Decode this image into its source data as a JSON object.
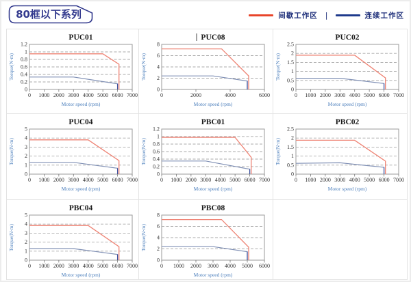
{
  "header": {
    "title": "80框以下系列",
    "separator": "|",
    "legend": [
      {
        "label": "间歇工作区",
        "color": "#e8442a"
      },
      {
        "label": "连续工作区",
        "color": "#1e3a8c"
      }
    ]
  },
  "colors": {
    "intermittent_line": "#ee8273",
    "continuous_line": "#8090b5",
    "continuous_drop": "#3a4f9e",
    "grid_line": "#a8a8a8",
    "plot_border": "#999999",
    "axis_label_blue": "#4f81bd",
    "accent_navy": "#333a8e",
    "cell_border": "#e3e3e3"
  },
  "chart_data": [
    {
      "type": "line",
      "title": "PUC01",
      "xlabel": "Motor speed (rpm)",
      "ylabel": "Torque(N·m)",
      "xlim": [
        0,
        7000
      ],
      "ylim": [
        0,
        1.2
      ],
      "xticks": [
        0,
        1000,
        2000,
        3000,
        4000,
        5000,
        6000,
        7000
      ],
      "yticks": [
        0,
        0.2,
        0.4,
        0.6,
        0.8,
        1,
        1.2
      ],
      "grid": "horizontal-dashed",
      "legend_position": "none",
      "series": [
        {
          "name": "间歇工作区",
          "color_key": "intermittent",
          "points": [
            [
              0,
              0.95
            ],
            [
              5000,
              0.95
            ],
            [
              6100,
              0.67
            ],
            [
              6100,
              0
            ]
          ]
        },
        {
          "name": "连续工作区",
          "color_key": "continuous",
          "points": [
            [
              0,
              0.33
            ],
            [
              3000,
              0.33
            ],
            [
              6000,
              0.15
            ],
            [
              6000,
              0
            ]
          ]
        }
      ]
    },
    {
      "type": "line",
      "title": "PUC08",
      "title_cursor": true,
      "xlabel": "Motor speed (rpm)",
      "ylabel": "Torque(N·m)",
      "xlim": [
        0,
        6000
      ],
      "ylim": [
        0,
        8
      ],
      "xticks": [
        0,
        2000,
        4000,
        6000
      ],
      "yticks": [
        0,
        2,
        4,
        6,
        8
      ],
      "grid": "horizontal-dashed",
      "legend_position": "none",
      "series": [
        {
          "name": "间歇工作区",
          "color_key": "intermittent",
          "points": [
            [
              0,
              7.2
            ],
            [
              3500,
              7.2
            ],
            [
              5080,
              2.4
            ],
            [
              5080,
              0
            ]
          ]
        },
        {
          "name": "连续工作区",
          "color_key": "continuous",
          "points": [
            [
              0,
              2.4
            ],
            [
              3000,
              2.4
            ],
            [
              5000,
              1.5
            ],
            [
              5000,
              0
            ]
          ]
        }
      ]
    },
    {
      "type": "line",
      "title": "PUC02",
      "xlabel": "Motor speed (rpm)",
      "ylabel": "Torque(N·m)",
      "xlim": [
        0,
        7000
      ],
      "ylim": [
        0,
        2.5
      ],
      "xticks": [
        0,
        1000,
        2000,
        3000,
        4000,
        5000,
        6000,
        7000
      ],
      "yticks": [
        0,
        0.5,
        1,
        1.5,
        2,
        2.5
      ],
      "grid": "horizontal-dashed",
      "legend_position": "none",
      "series": [
        {
          "name": "间歇工作区",
          "color_key": "intermittent",
          "points": [
            [
              0,
              1.9
            ],
            [
              4000,
              1.9
            ],
            [
              6100,
              0.64
            ],
            [
              6100,
              0
            ]
          ]
        },
        {
          "name": "连续工作区",
          "color_key": "continuous",
          "points": [
            [
              0,
              0.62
            ],
            [
              3000,
              0.62
            ],
            [
              6000,
              0.33
            ],
            [
              6000,
              0
            ]
          ]
        }
      ]
    },
    {
      "type": "line",
      "title": "PUC04",
      "xlabel": "Motor speed (rpm)",
      "ylabel": "Torque(N·m)",
      "xlim": [
        0,
        7000
      ],
      "ylim": [
        0,
        5
      ],
      "xticks": [
        0,
        1000,
        2000,
        3000,
        4000,
        5000,
        6000,
        7000
      ],
      "yticks": [
        0,
        1,
        2,
        3,
        4,
        5
      ],
      "grid": "horizontal-dashed",
      "legend_position": "none",
      "series": [
        {
          "name": "间歇工作区",
          "color_key": "intermittent",
          "points": [
            [
              0,
              3.8
            ],
            [
              4000,
              3.8
            ],
            [
              6100,
              1.5
            ],
            [
              6100,
              0
            ]
          ]
        },
        {
          "name": "连续工作区",
          "color_key": "continuous",
          "points": [
            [
              0,
              1.3
            ],
            [
              3000,
              1.3
            ],
            [
              6000,
              0.65
            ],
            [
              6000,
              0
            ]
          ]
        }
      ]
    },
    {
      "type": "line",
      "title": "PBC01",
      "xlabel": "Motor speed (rpm)",
      "ylabel": "Torque(N·m)",
      "xlim": [
        0,
        7000
      ],
      "ylim": [
        0,
        1.2
      ],
      "xticks": [
        0,
        1000,
        2000,
        3000,
        4000,
        5000,
        6000,
        7000
      ],
      "yticks": [
        0,
        0.2,
        0.4,
        0.6,
        0.8,
        1,
        1.2
      ],
      "grid": "horizontal-dashed",
      "legend_position": "none",
      "series": [
        {
          "name": "间歇工作区",
          "color_key": "intermittent",
          "points": [
            [
              0,
              0.98
            ],
            [
              5000,
              0.98
            ],
            [
              6100,
              0.45
            ],
            [
              6100,
              0
            ]
          ]
        },
        {
          "name": "连续工作区",
          "color_key": "continuous",
          "points": [
            [
              0,
              0.35
            ],
            [
              3000,
              0.35
            ],
            [
              6000,
              0.13
            ],
            [
              6000,
              0
            ]
          ]
        }
      ]
    },
    {
      "type": "line",
      "title": "PBC02",
      "xlabel": "Motor speed (rpm)",
      "ylabel": "Torque(N·m)",
      "xlim": [
        0,
        7000
      ],
      "ylim": [
        0,
        2.5
      ],
      "xticks": [
        0,
        1000,
        2000,
        3000,
        4000,
        5000,
        6000,
        7000
      ],
      "yticks": [
        0,
        0.5,
        1,
        1.5,
        2,
        2.5
      ],
      "grid": "horizontal-dashed",
      "legend_position": "none",
      "series": [
        {
          "name": "间歇工作区",
          "color_key": "intermittent",
          "points": [
            [
              0,
              1.88
            ],
            [
              4000,
              1.88
            ],
            [
              6100,
              0.72
            ],
            [
              6100,
              0
            ]
          ]
        },
        {
          "name": "连续工作区",
          "color_key": "continuous",
          "points": [
            [
              0,
              0.6
            ],
            [
              3000,
              0.63
            ],
            [
              6000,
              0.38
            ],
            [
              6000,
              0
            ]
          ]
        }
      ]
    },
    {
      "type": "line",
      "title": "PBC04",
      "xlabel": "Motor speed (rpm)",
      "ylabel": "Torque(N·m)",
      "xlim": [
        0,
        7000
      ],
      "ylim": [
        0,
        5
      ],
      "xticks": [
        0,
        1000,
        2000,
        3000,
        4000,
        5000,
        6000,
        7000
      ],
      "yticks": [
        0,
        1,
        2,
        3,
        4,
        5
      ],
      "grid": "horizontal-dashed",
      "legend_position": "none",
      "series": [
        {
          "name": "间歇工作区",
          "color_key": "intermittent",
          "points": [
            [
              0,
              3.85
            ],
            [
              4000,
              3.85
            ],
            [
              6100,
              1.5
            ],
            [
              6100,
              0
            ]
          ]
        },
        {
          "name": "连续工作区",
          "color_key": "continuous",
          "points": [
            [
              0,
              1.28
            ],
            [
              3000,
              1.28
            ],
            [
              6000,
              0.64
            ],
            [
              6000,
              0
            ]
          ]
        }
      ]
    },
    {
      "type": "line",
      "title": "PBC08",
      "xlabel": "Motor speed (rpm)",
      "ylabel": "Torque(N·m)",
      "xlim": [
        0,
        6000
      ],
      "ylim": [
        0,
        8
      ],
      "xticks": [
        0,
        1000,
        2000,
        3000,
        4000,
        5000,
        6000
      ],
      "yticks": [
        0,
        2,
        4,
        6,
        8
      ],
      "grid": "horizontal-dashed",
      "legend_position": "none",
      "series": [
        {
          "name": "间歇工作区",
          "color_key": "intermittent",
          "points": [
            [
              0,
              7.2
            ],
            [
              3500,
              7.2
            ],
            [
              5080,
              2.3
            ],
            [
              5080,
              0
            ]
          ]
        },
        {
          "name": "连续工作区",
          "color_key": "continuous",
          "points": [
            [
              0,
              2.4
            ],
            [
              3000,
              2.4
            ],
            [
              5000,
              1.5
            ],
            [
              5000,
              0
            ]
          ]
        }
      ]
    }
  ]
}
